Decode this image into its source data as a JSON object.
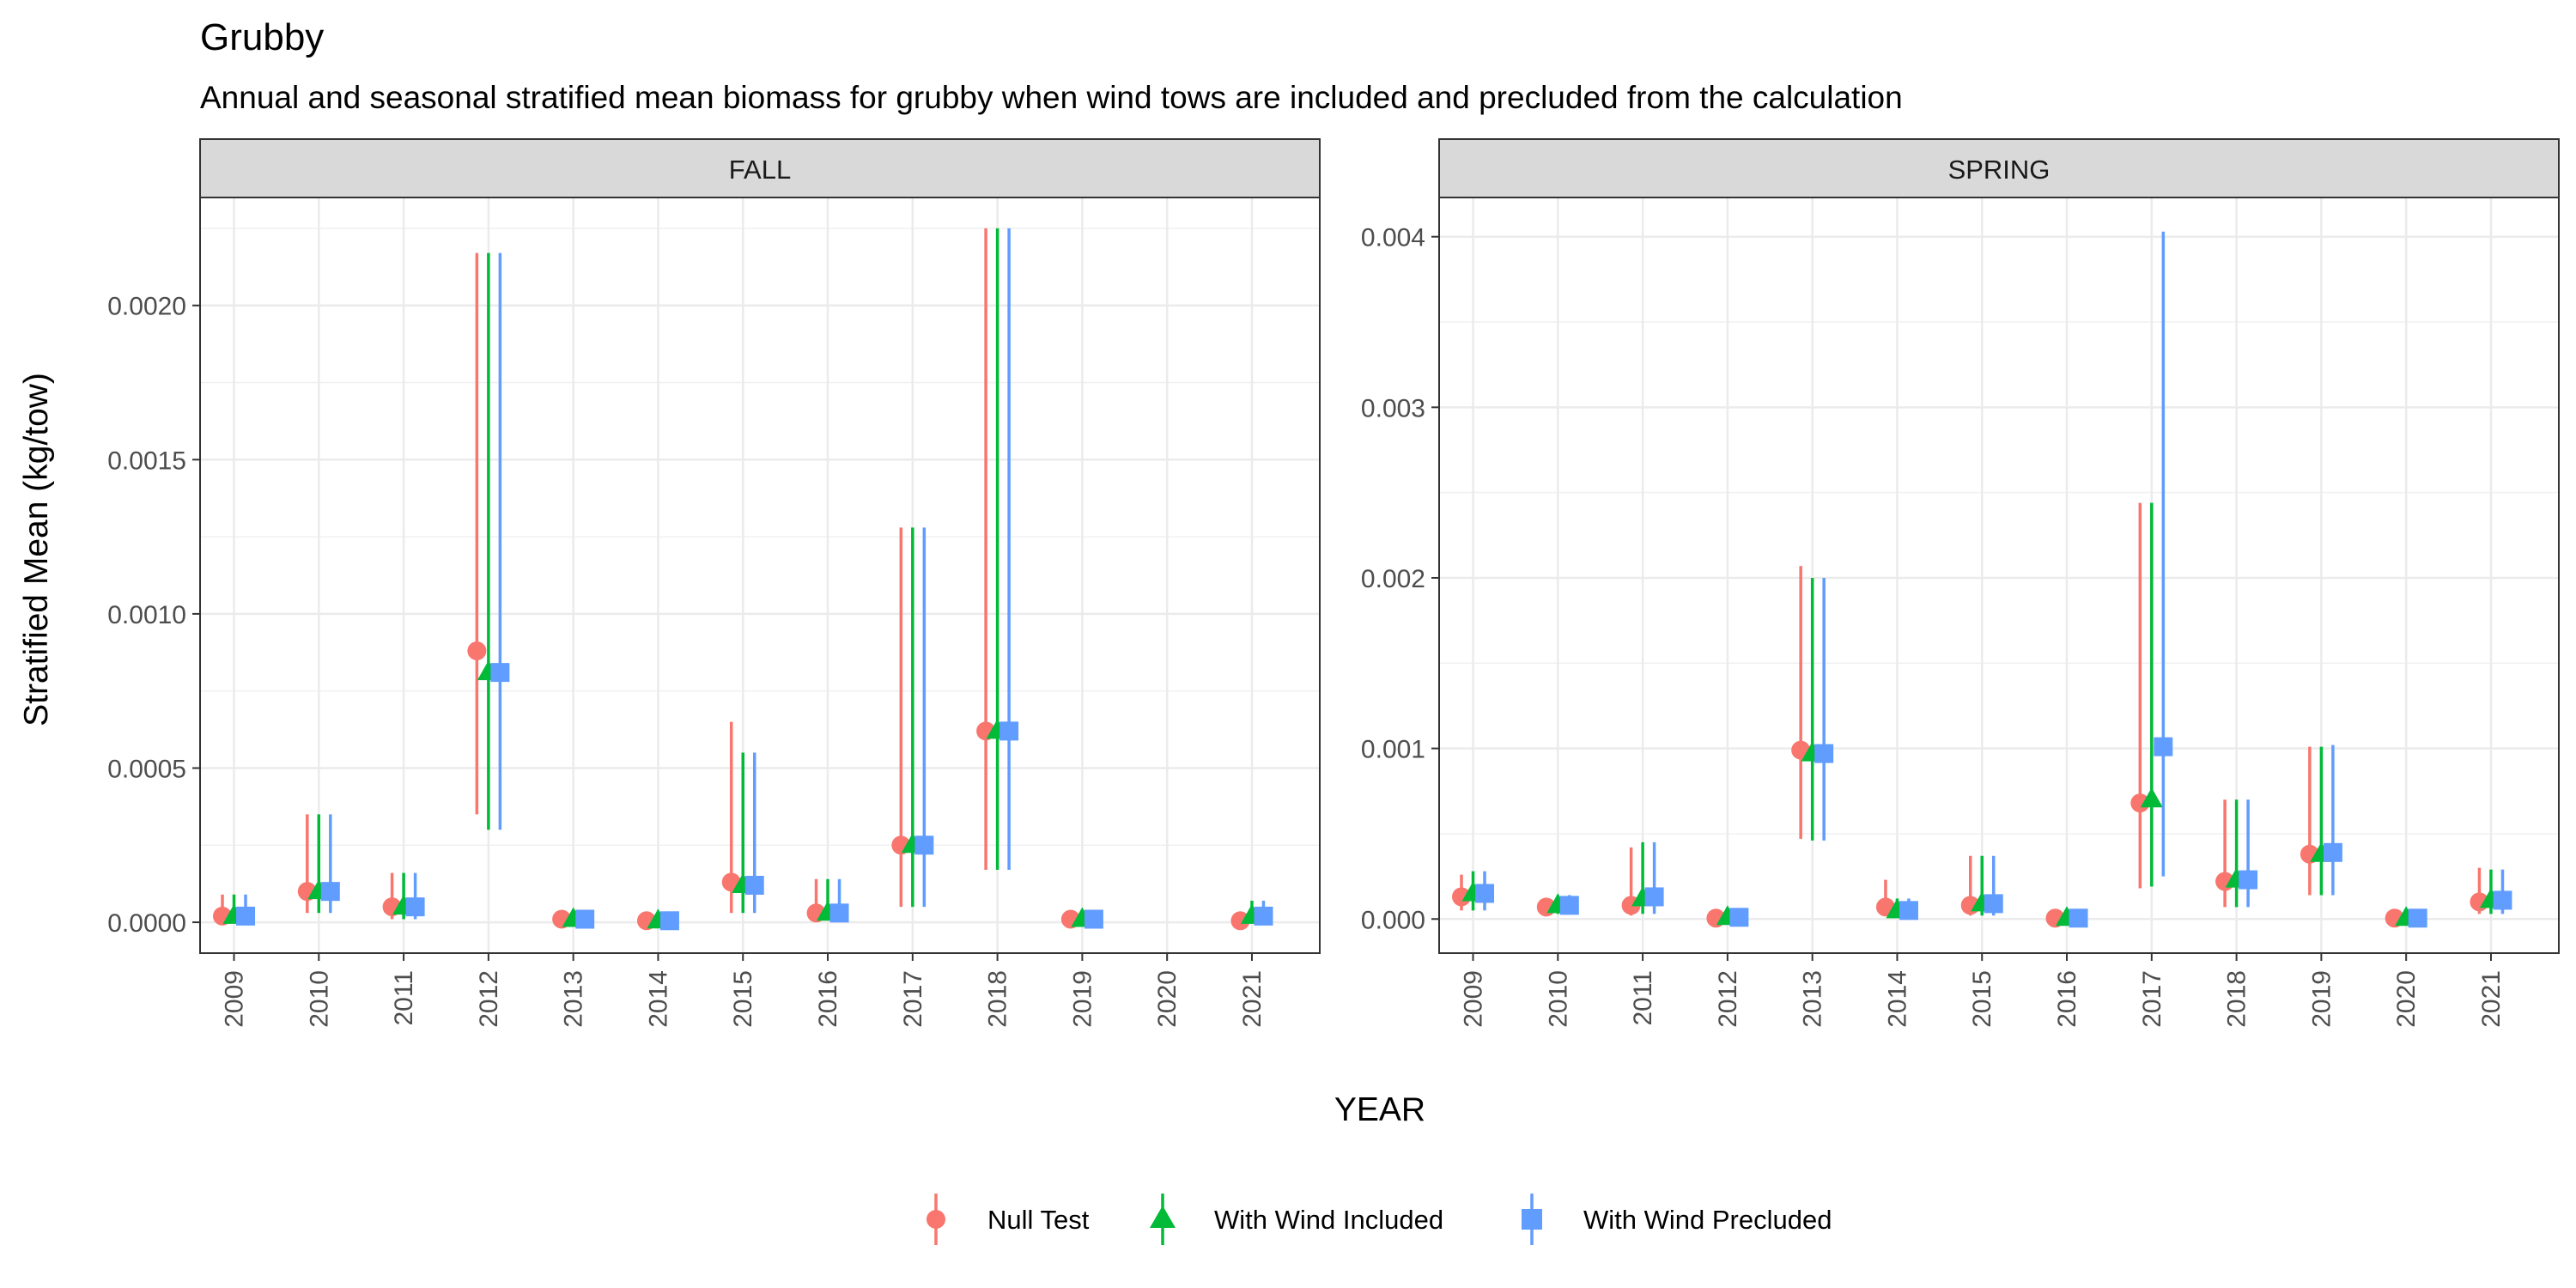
{
  "chart_data": {
    "type": "scatter",
    "title": "Grubby",
    "subtitle": "Annual and seasonal stratified mean biomass for grubby when wind tows are included and precluded from the calculation",
    "xlabel": "YEAR",
    "ylabel": "Stratified Mean (kg/tow)",
    "x": [
      "2009",
      "2010",
      "2011",
      "2012",
      "2013",
      "2014",
      "2015",
      "2016",
      "2017",
      "2018",
      "2019",
      "2020",
      "2021"
    ],
    "grid": true,
    "legend_position": "bottom",
    "legend": [
      {
        "name": "Null Test",
        "color": "#F8766D",
        "shape": "circle"
      },
      {
        "name": "With Wind Included",
        "color": "#00BA38",
        "shape": "triangle"
      },
      {
        "name": "With Wind Precluded",
        "color": "#619CFF",
        "shape": "square"
      }
    ],
    "panels": [
      {
        "strip": "FALL",
        "ylim": [
          -0.0001,
          0.00235
        ],
        "yticks": [
          0,
          0.0005,
          0.001,
          0.0015,
          0.002
        ],
        "ytick_labels": [
          "0.0000",
          "0.0005",
          "0.0010",
          "0.0015",
          "0.0020"
        ],
        "series": [
          {
            "name": "Null Test",
            "values": [
              2e-05,
              0.0001,
              5e-05,
              0.00088,
              1e-05,
              5e-06,
              0.00013,
              3e-05,
              0.00025,
              0.00062,
              1e-05,
              null,
              5e-06
            ],
            "lower": [
              5e-06,
              3e-05,
              1e-05,
              0.00035,
              0.0,
              0.0,
              3e-05,
              1e-05,
              5e-05,
              0.00017,
              0.0,
              null,
              0.0
            ],
            "upper": [
              9e-05,
              0.00035,
              0.00016,
              0.00217,
              2e-05,
              1.5e-05,
              0.00065,
              0.00014,
              0.00128,
              0.00225,
              2e-05,
              null,
              1e-05
            ]
          },
          {
            "name": "With Wind Included",
            "values": [
              2e-05,
              0.0001,
              5e-05,
              0.00081,
              1e-05,
              5e-06,
              0.00012,
              3e-05,
              0.00025,
              0.00062,
              1e-05,
              null,
              2e-05
            ],
            "lower": [
              5e-06,
              3e-05,
              1e-05,
              0.0003,
              0.0,
              0.0,
              3e-05,
              1e-05,
              5e-05,
              0.00017,
              0.0,
              null,
              0.0
            ],
            "upper": [
              9e-05,
              0.00035,
              0.00016,
              0.00217,
              2e-05,
              1.5e-05,
              0.00055,
              0.00014,
              0.00128,
              0.00225,
              2e-05,
              null,
              7e-05
            ]
          },
          {
            "name": "With Wind Precluded",
            "values": [
              2e-05,
              0.0001,
              5e-05,
              0.00081,
              1e-05,
              5e-06,
              0.00012,
              3e-05,
              0.00025,
              0.00062,
              1e-05,
              null,
              2e-05
            ],
            "lower": [
              5e-06,
              3e-05,
              1e-05,
              0.0003,
              0.0,
              0.0,
              3e-05,
              1e-05,
              5e-05,
              0.00017,
              0.0,
              null,
              0.0
            ],
            "upper": [
              9e-05,
              0.00035,
              0.00016,
              0.00217,
              2e-05,
              1.5e-05,
              0.00055,
              0.00014,
              0.00128,
              0.00225,
              2e-05,
              null,
              7e-05
            ]
          }
        ]
      },
      {
        "strip": "SPRING",
        "ylim": [
          -0.0002,
          0.00423
        ],
        "yticks": [
          0,
          0.001,
          0.002,
          0.003,
          0.004
        ],
        "ytick_labels": [
          "0.000",
          "0.001",
          "0.002",
          "0.003",
          "0.004"
        ],
        "series": [
          {
            "name": "Null Test",
            "values": [
              0.00013,
              7e-05,
              8e-05,
              5e-06,
              0.00099,
              7e-05,
              8e-05,
              5e-06,
              0.00068,
              0.00022,
              0.00038,
              5e-06,
              0.0001
            ],
            "lower": [
              5e-05,
              3e-05,
              2e-05,
              0.0,
              0.00047,
              2e-05,
              2e-05,
              0.0,
              0.00018,
              7e-05,
              0.00014,
              0.0,
              3e-05
            ],
            "upper": [
              0.00026,
              0.00012,
              0.00042,
              2e-05,
              0.00207,
              0.00023,
              0.00037,
              2e-05,
              0.00244,
              0.0007,
              0.00101,
              2e-05,
              0.0003
            ]
          },
          {
            "name": "With Wind Included",
            "values": [
              0.00015,
              8e-05,
              0.00012,
              1e-05,
              0.00097,
              5e-05,
              9e-05,
              5e-06,
              0.0007,
              0.00023,
              0.00038,
              5e-06,
              0.00011
            ],
            "lower": [
              5e-05,
              3e-05,
              3e-05,
              0.0,
              0.00046,
              1e-05,
              2e-05,
              0.0,
              0.00019,
              7e-05,
              0.00014,
              0.0,
              3e-05
            ],
            "upper": [
              0.00028,
              0.00014,
              0.00045,
              2e-05,
              0.002,
              0.00012,
              0.00037,
              2e-05,
              0.00244,
              0.0007,
              0.00101,
              2e-05,
              0.00029
            ]
          },
          {
            "name": "With Wind Precluded",
            "values": [
              0.00015,
              8e-05,
              0.00013,
              1e-05,
              0.00097,
              5e-05,
              9e-05,
              5e-06,
              0.00101,
              0.00023,
              0.00039,
              5e-06,
              0.00011
            ],
            "lower": [
              5e-05,
              3e-05,
              3e-05,
              0.0,
              0.00046,
              1e-05,
              2e-05,
              0.0,
              0.00025,
              7e-05,
              0.00014,
              0.0,
              3e-05
            ],
            "upper": [
              0.00028,
              0.00014,
              0.00045,
              2e-05,
              0.002,
              0.00012,
              0.00037,
              2e-05,
              0.00403,
              0.0007,
              0.00102,
              2e-05,
              0.00029
            ]
          }
        ]
      }
    ]
  }
}
